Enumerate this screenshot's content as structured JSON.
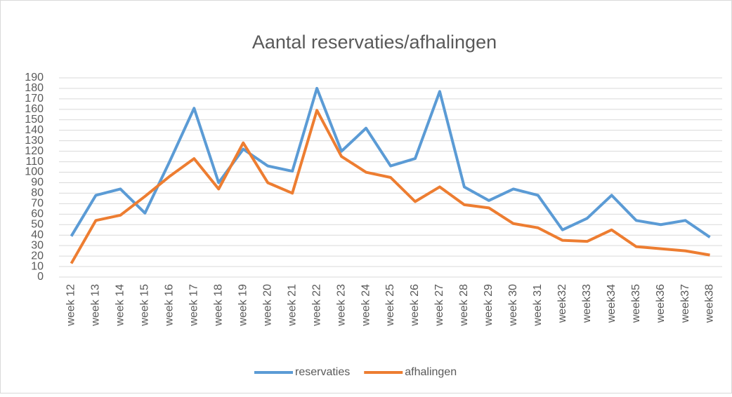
{
  "chart_data": {
    "type": "line",
    "title": "Aantal reservaties/afhalingen",
    "categories": [
      "week 12",
      "week 13",
      "week 14",
      "week 15",
      "week 16",
      "week 17",
      "week 18",
      "week 19",
      "week 20",
      "week 21",
      "week 22",
      "week 23",
      "week 24",
      "week 25",
      "week 26",
      "week 27",
      "week 28",
      "week 29",
      "week 30",
      "week 31",
      "week32",
      "week33",
      "week34",
      "week35",
      "week36",
      "week37",
      "week38"
    ],
    "series": [
      {
        "name": "reservaties",
        "color": "#5b9bd5",
        "values": [
          39,
          78,
          84,
          61,
          110,
          161,
          90,
          122,
          106,
          101,
          180,
          120,
          142,
          106,
          113,
          177,
          86,
          73,
          84,
          78,
          45,
          56,
          78,
          54,
          50,
          54,
          38
        ]
      },
      {
        "name": "afhalingen",
        "color": "#ed7d31",
        "values": [
          13,
          54,
          59,
          77,
          96,
          113,
          84,
          128,
          90,
          80,
          159,
          115,
          100,
          95,
          72,
          86,
          69,
          66,
          51,
          47,
          35,
          34,
          45,
          29,
          27,
          25,
          21
        ]
      }
    ],
    "ylim": [
      0,
      190
    ],
    "yticks": [
      0,
      10,
      20,
      30,
      40,
      50,
      60,
      70,
      80,
      90,
      100,
      110,
      120,
      130,
      140,
      150,
      160,
      170,
      180,
      190
    ],
    "grid": true,
    "legend": "bottom"
  }
}
